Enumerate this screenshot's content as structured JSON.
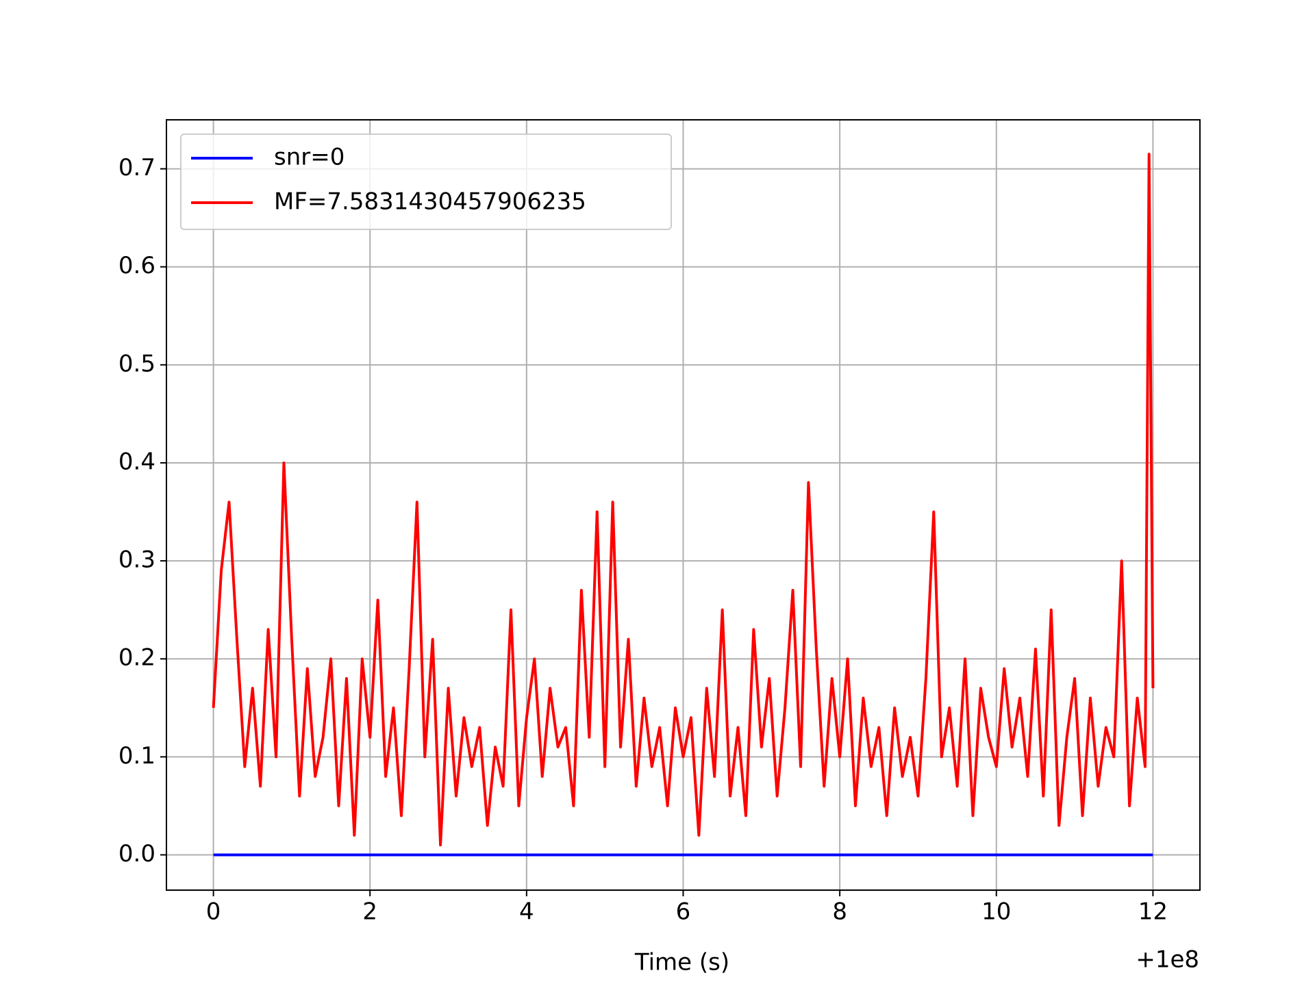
{
  "chart_data": {
    "type": "line",
    "xlabel": "Time (s)",
    "x_offset_text": "+1e8",
    "xlim": [
      -0.6,
      12.6
    ],
    "ylim": [
      -0.036,
      0.75
    ],
    "xticks": [
      0,
      2,
      4,
      6,
      8,
      10,
      12
    ],
    "yticks": [
      {
        "value": 0,
        "label": "0.0"
      },
      0.1,
      0.2,
      0.3,
      0.4,
      0.5,
      0.6,
      0.7
    ],
    "grid": true,
    "legend": "upper left",
    "series": [
      {
        "name": "snr=0",
        "color": "#0000ff",
        "x": [
          0,
          12
        ],
        "values": [
          0,
          0
        ]
      },
      {
        "name": "MF=7.5831430457906235",
        "color": "#ff0000",
        "x": [
          0,
          0.1,
          0.2,
          0.3,
          0.4,
          0.5,
          0.6,
          0.7,
          0.8,
          0.9,
          1,
          1.1,
          1.2,
          1.3,
          1.4,
          1.5,
          1.6,
          1.7,
          1.8,
          1.9,
          2,
          2.1,
          2.2,
          2.3,
          2.4,
          2.5,
          2.6,
          2.7,
          2.8,
          2.9,
          3,
          3.1,
          3.2,
          3.3,
          3.4,
          3.5,
          3.6,
          3.7,
          3.8,
          3.9,
          4,
          4.1,
          4.2,
          4.3,
          4.4,
          4.5,
          4.6,
          4.7,
          4.8,
          4.9,
          5,
          5.1,
          5.2,
          5.3,
          5.4,
          5.5,
          5.6,
          5.7,
          5.8,
          5.9,
          6,
          6.1,
          6.2,
          6.3,
          6.4,
          6.5,
          6.6,
          6.7,
          6.8,
          6.9,
          7,
          7.1,
          7.2,
          7.3,
          7.4,
          7.5,
          7.6,
          7.7,
          7.8,
          7.9,
          8,
          8.1,
          8.2,
          8.3,
          8.4,
          8.5,
          8.6,
          8.7,
          8.8,
          8.9,
          9,
          9.1,
          9.2,
          9.3,
          9.4,
          9.5,
          9.6,
          9.7,
          9.8,
          9.9,
          10,
          10.1,
          10.2,
          10.3,
          10.4,
          10.5,
          10.6,
          10.7,
          10.8,
          10.9,
          11,
          11.1,
          11.2,
          11.3,
          11.4,
          11.5,
          11.6,
          11.7,
          11.8,
          11.9,
          11.95,
          12
        ],
        "values": [
          0.15,
          0.29,
          0.36,
          0.22,
          0.09,
          0.17,
          0.07,
          0.23,
          0.1,
          0.4,
          0.22,
          0.06,
          0.19,
          0.08,
          0.12,
          0.2,
          0.05,
          0.18,
          0.02,
          0.2,
          0.12,
          0.26,
          0.08,
          0.15,
          0.04,
          0.19,
          0.36,
          0.1,
          0.22,
          0.01,
          0.17,
          0.06,
          0.14,
          0.09,
          0.13,
          0.03,
          0.11,
          0.07,
          0.25,
          0.05,
          0.14,
          0.2,
          0.08,
          0.17,
          0.11,
          0.13,
          0.05,
          0.27,
          0.12,
          0.35,
          0.09,
          0.36,
          0.11,
          0.22,
          0.07,
          0.16,
          0.09,
          0.13,
          0.05,
          0.15,
          0.1,
          0.14,
          0.02,
          0.17,
          0.08,
          0.25,
          0.06,
          0.13,
          0.04,
          0.23,
          0.11,
          0.18,
          0.06,
          0.15,
          0.27,
          0.09,
          0.38,
          0.21,
          0.07,
          0.18,
          0.1,
          0.2,
          0.05,
          0.16,
          0.09,
          0.13,
          0.04,
          0.15,
          0.08,
          0.12,
          0.06,
          0.18,
          0.35,
          0.1,
          0.15,
          0.07,
          0.2,
          0.04,
          0.17,
          0.12,
          0.09,
          0.19,
          0.11,
          0.16,
          0.08,
          0.21,
          0.06,
          0.25,
          0.03,
          0.12,
          0.18,
          0.04,
          0.16,
          0.07,
          0.13,
          0.1,
          0.3,
          0.05,
          0.16,
          0.09,
          0.715,
          0.17
        ]
      }
    ]
  }
}
